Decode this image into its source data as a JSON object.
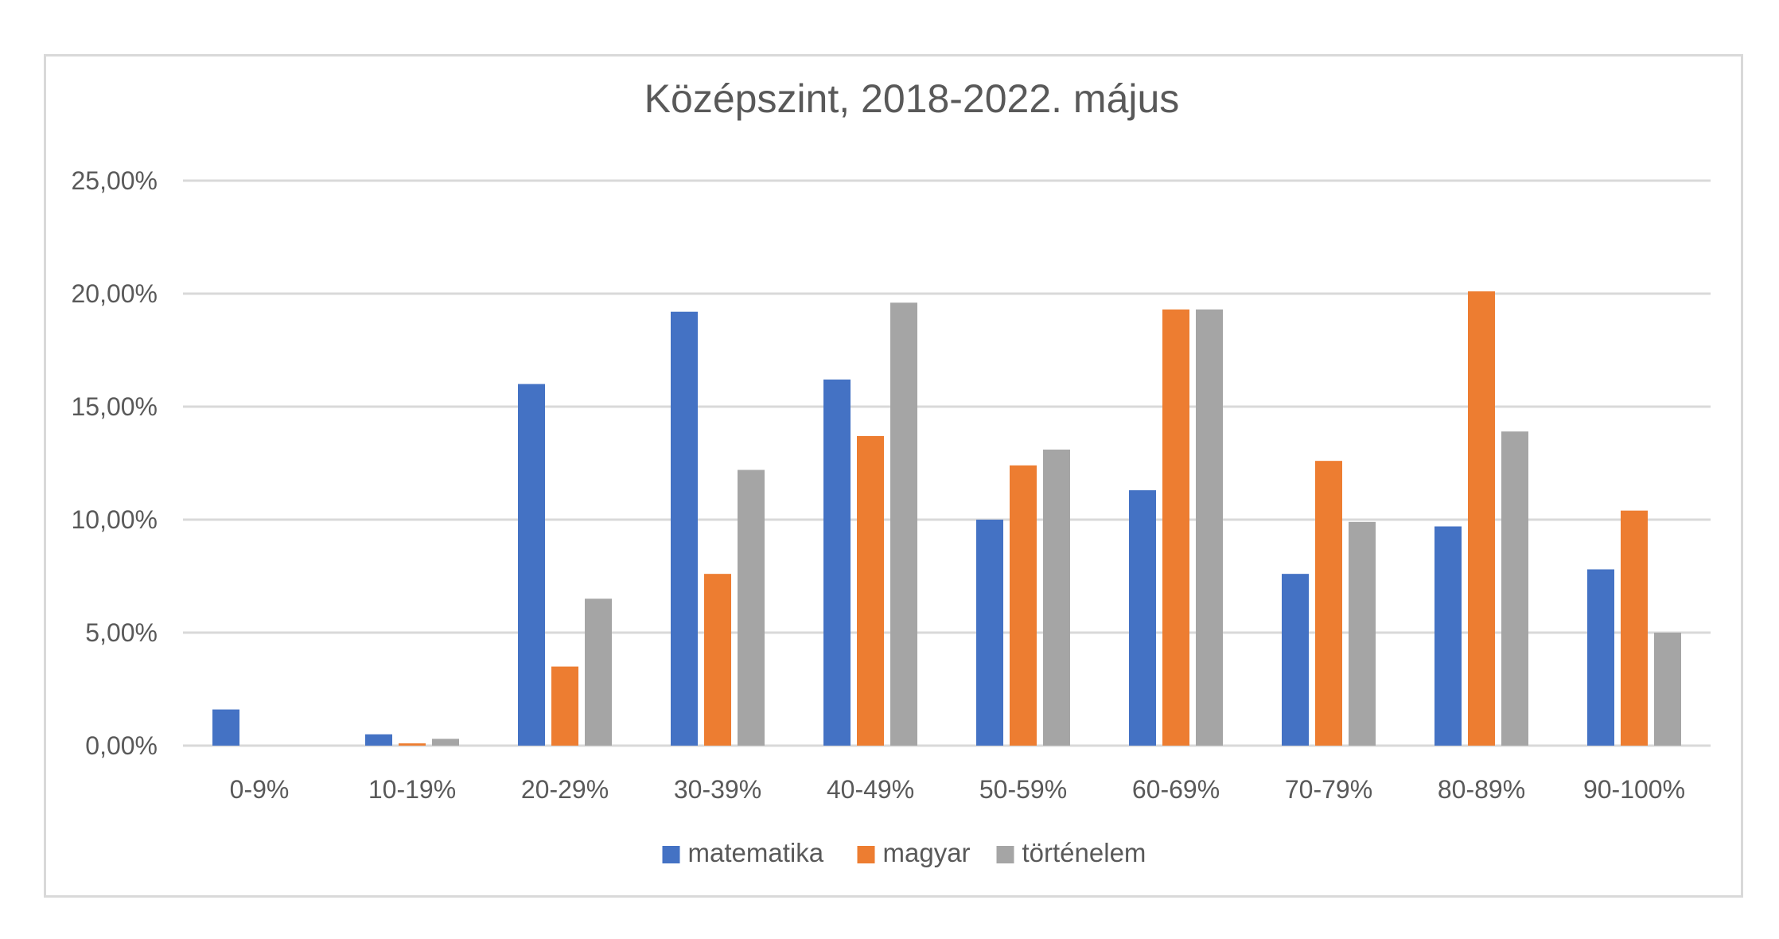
{
  "chart_data": {
    "type": "bar",
    "title": "Középszint, 2018-2022. május",
    "xlabel": "",
    "ylabel": "",
    "categories": [
      "0-9%",
      "10-19%",
      "20-29%",
      "30-39%",
      "40-49%",
      "50-59%",
      "60-69%",
      "70-79%",
      "80-89%",
      "90-100%"
    ],
    "series": [
      {
        "name": "matematika",
        "color": "#4472c4",
        "values": [
          1.6,
          0.5,
          16.0,
          19.2,
          16.2,
          10.0,
          11.3,
          7.6,
          9.7,
          7.8
        ]
      },
      {
        "name": "magyar",
        "color": "#ed7d31",
        "values": [
          0.0,
          0.1,
          3.5,
          7.6,
          13.7,
          12.4,
          19.3,
          12.6,
          20.1,
          10.4
        ]
      },
      {
        "name": "történelem",
        "color": "#a5a5a5",
        "values": [
          0.0,
          0.3,
          6.5,
          12.2,
          19.6,
          13.1,
          19.3,
          9.9,
          13.9,
          5.0
        ]
      }
    ],
    "ylim": [
      0,
      25
    ],
    "yticks": [
      "0,00%",
      "5,00%",
      "10,00%",
      "15,00%",
      "20,00%",
      "25,00%"
    ],
    "grid": true,
    "legend_position": "bottom"
  }
}
